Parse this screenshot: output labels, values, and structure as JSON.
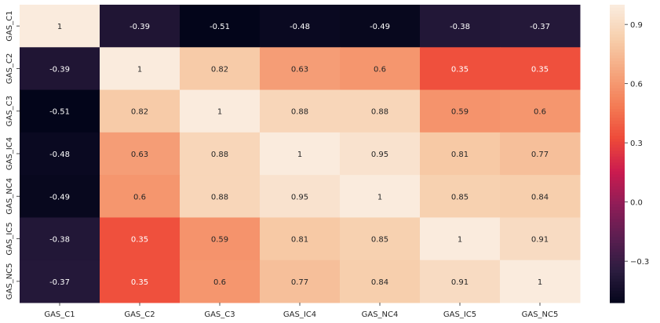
{
  "chart_data": {
    "type": "heatmap",
    "title": "",
    "xlabel": "",
    "ylabel": "",
    "x_labels": [
      "GAS_C1",
      "GAS_C2",
      "GAS_C3",
      "GAS_IC4",
      "GAS_NC4",
      "GAS_IC5",
      "GAS_NC5"
    ],
    "y_labels": [
      "GAS_C1",
      "GAS_C2",
      "GAS_C3",
      "GAS_IC4",
      "GAS_NC4",
      "GAS_IC5",
      "GAS_NC5"
    ],
    "values": [
      [
        1,
        -0.39,
        -0.51,
        -0.48,
        -0.49,
        -0.38,
        -0.37
      ],
      [
        -0.39,
        1,
        0.82,
        0.63,
        0.6,
        0.35,
        0.35
      ],
      [
        -0.51,
        0.82,
        1,
        0.88,
        0.88,
        0.59,
        0.6
      ],
      [
        -0.48,
        0.63,
        0.88,
        1,
        0.95,
        0.81,
        0.77
      ],
      [
        -0.49,
        0.6,
        0.88,
        0.95,
        1,
        0.85,
        0.84
      ],
      [
        -0.38,
        0.35,
        0.59,
        0.81,
        0.85,
        1,
        0.91
      ],
      [
        -0.37,
        0.35,
        0.6,
        0.77,
        0.84,
        0.91,
        1
      ]
    ],
    "annotations": [
      [
        "1",
        "-0.39",
        "-0.51",
        "-0.48",
        "-0.49",
        "-0.38",
        "-0.37"
      ],
      [
        "-0.39",
        "1",
        "0.82",
        "0.63",
        "0.6",
        "0.35",
        "0.35"
      ],
      [
        "-0.51",
        "0.82",
        "1",
        "0.88",
        "0.88",
        "0.59",
        "0.6"
      ],
      [
        "-0.48",
        "0.63",
        "0.88",
        "1",
        "0.95",
        "0.81",
        "0.77"
      ],
      [
        "-0.49",
        "0.6",
        "0.88",
        "0.95",
        "1",
        "0.85",
        "0.84"
      ],
      [
        "-0.38",
        "0.35",
        "0.59",
        "0.81",
        "0.85",
        "1",
        "0.91"
      ],
      [
        "-0.37",
        "0.35",
        "0.6",
        "0.77",
        "0.84",
        "0.91",
        "1"
      ]
    ],
    "colorbar": {
      "vmin": -0.51,
      "vmax": 1,
      "ticks": [
        -0.3,
        0.0,
        0.3,
        0.6,
        0.9
      ],
      "tick_labels": [
        "−0.3",
        "0.0",
        "0.3",
        "0.6",
        "0.9"
      ]
    },
    "colormap": "rocket",
    "colormap_stops": [
      "#03051a",
      "#2b1c3f",
      "#5b1e51",
      "#8f1d57",
      "#cb1b4f",
      "#ee4a39",
      "#f47c55",
      "#f5a67e",
      "#f7ceab",
      "#faebdd"
    ],
    "grid": false,
    "legend": "colorbar-right"
  }
}
